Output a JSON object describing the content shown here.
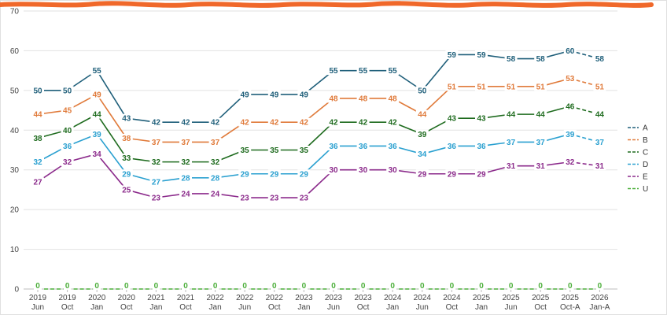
{
  "chart_data": {
    "type": "line",
    "title": "",
    "xlabel": "",
    "ylabel": "",
    "ylim": [
      0,
      70
    ],
    "yticks": [
      0,
      10,
      20,
      30,
      40,
      50,
      60,
      70
    ],
    "grid": true,
    "legend_position": "right",
    "categories": [
      [
        "2019",
        "Jun"
      ],
      [
        "2019",
        "Oct"
      ],
      [
        "2020",
        "Jan"
      ],
      [
        "2020",
        "Oct"
      ],
      [
        "2021",
        "Jan"
      ],
      [
        "2021",
        "Oct"
      ],
      [
        "2022",
        "Jan"
      ],
      [
        "2022",
        "Jun"
      ],
      [
        "2022",
        "Oct"
      ],
      [
        "2023",
        "Jan"
      ],
      [
        "2023",
        "Jun"
      ],
      [
        "2023",
        "Oct"
      ],
      [
        "2024",
        "Jan"
      ],
      [
        "2024",
        "Jun"
      ],
      [
        "2024",
        "Oct"
      ],
      [
        "2025",
        "Jan"
      ],
      [
        "2025",
        "Jun"
      ],
      [
        "2025",
        "Oct"
      ],
      [
        "2025",
        "Oct-A"
      ],
      [
        "2026",
        "Jan-A"
      ]
    ],
    "series": [
      {
        "name": "A",
        "color": "#1f5f7a",
        "dashed": [
          0,
          0,
          0,
          0,
          0,
          0,
          0,
          0,
          0,
          0,
          0,
          0,
          0,
          0,
          0,
          0,
          0,
          0,
          1
        ],
        "values": [
          50,
          50,
          55,
          43,
          42,
          42,
          42,
          49,
          49,
          49,
          55,
          55,
          55,
          50,
          59,
          59,
          58,
          58,
          60,
          58
        ]
      },
      {
        "name": "B",
        "color": "#e07a3a",
        "dashed": [
          0,
          0,
          0,
          0,
          0,
          0,
          0,
          0,
          0,
          0,
          0,
          0,
          0,
          0,
          0,
          0,
          0,
          0,
          1
        ],
        "values": [
          44,
          45,
          49,
          38,
          37,
          37,
          37,
          42,
          42,
          42,
          48,
          48,
          48,
          44,
          51,
          51,
          51,
          51,
          53,
          51
        ]
      },
      {
        "name": "C",
        "color": "#1e6b1e",
        "dashed": [
          0,
          0,
          0,
          0,
          0,
          0,
          0,
          0,
          0,
          0,
          0,
          0,
          0,
          0,
          0,
          0,
          0,
          0,
          1
        ],
        "values": [
          38,
          40,
          44,
          33,
          32,
          32,
          32,
          35,
          35,
          35,
          42,
          42,
          42,
          39,
          43,
          43,
          44,
          44,
          46,
          44
        ]
      },
      {
        "name": "D",
        "color": "#2aa0d0",
        "dashed": [
          0,
          0,
          0,
          0,
          0,
          0,
          0,
          0,
          0,
          0,
          0,
          0,
          0,
          0,
          0,
          0,
          0,
          0,
          1
        ],
        "values": [
          32,
          36,
          39,
          29,
          27,
          28,
          28,
          29,
          29,
          29,
          36,
          36,
          36,
          34,
          36,
          36,
          37,
          37,
          39,
          37
        ]
      },
      {
        "name": "E",
        "color": "#8b2a8b",
        "dashed": [
          0,
          0,
          0,
          0,
          0,
          0,
          0,
          0,
          0,
          0,
          0,
          0,
          0,
          0,
          0,
          0,
          0,
          0,
          1
        ],
        "values": [
          27,
          32,
          34,
          25,
          23,
          24,
          24,
          23,
          23,
          23,
          30,
          30,
          30,
          29,
          29,
          29,
          31,
          31,
          32,
          31
        ]
      },
      {
        "name": "U",
        "color": "#4caf3a",
        "dashed": [
          1,
          1,
          1,
          1,
          1,
          1,
          1,
          1,
          1,
          1,
          1,
          1,
          1,
          1,
          1,
          1,
          1,
          1,
          1
        ],
        "values": [
          0,
          0,
          0,
          0,
          0,
          0,
          0,
          0,
          0,
          0,
          0,
          0,
          0,
          0,
          0,
          0,
          0,
          0,
          0,
          0
        ]
      }
    ]
  }
}
